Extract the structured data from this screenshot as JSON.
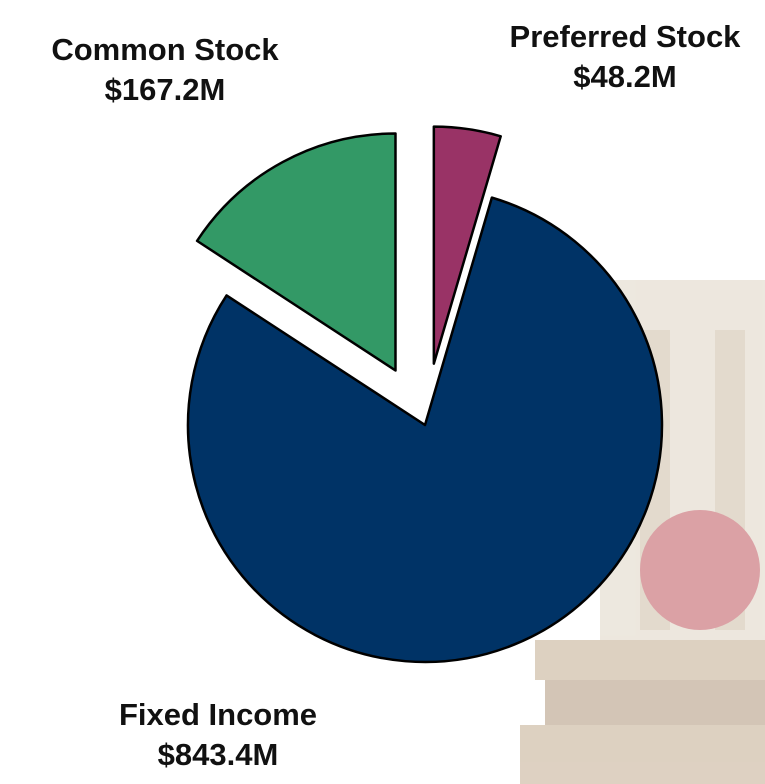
{
  "chart_data": {
    "type": "pie",
    "categories": [
      "Preferred Stock",
      "Fixed Income",
      "Common Stock"
    ],
    "values": [
      48.2,
      843.4,
      167.2
    ],
    "value_labels": [
      "$48.2M",
      "$843.4M",
      "$167.2M"
    ],
    "colors": [
      "#993366",
      "#003366",
      "#339966"
    ]
  }
}
